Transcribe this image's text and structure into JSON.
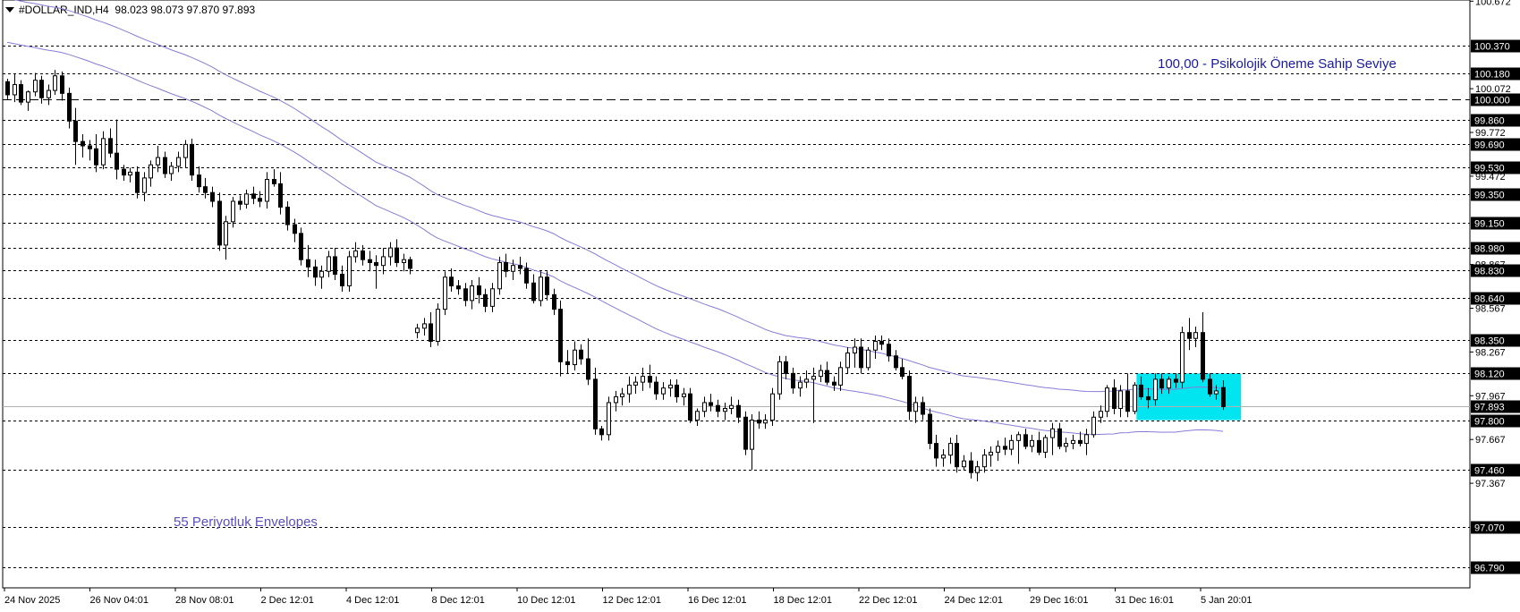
{
  "header": {
    "symbol": "#DOLLAR_IND,H4",
    "ohlc": "98.023 98.073 97.870 97.893"
  },
  "colors": {
    "background": "#ffffff",
    "candle": "#000000",
    "envelope": "#8a7bd6",
    "annotation_text": "#1a1aa0",
    "envelope_label": "#5a4fc0",
    "zone_fill": "#00e5f0",
    "current_price_line": "#b0b0b0"
  },
  "chart_data": {
    "type": "candlestick",
    "title": "",
    "ylim": [
      96.65,
      100.68
    ],
    "grid": false,
    "y_ticks": [
      "100.672",
      "100.072",
      "99.772",
      "99.472",
      "98.867",
      "98.567",
      "98.267",
      "97.967",
      "97.667",
      "97.367"
    ],
    "x_ticks": [
      "24 Nov 2025",
      "26 Nov 04:01",
      "28 Nov 08:01",
      "2 Dec 12:01",
      "4 Dec 12:01",
      "8 Dec 12:01",
      "10 Dec 12:01",
      "12 Dec 12:01",
      "16 Dec 12:01",
      "18 Dec 12:01",
      "22 Dec 12:01",
      "24 Dec 12:01",
      "29 Dec 16:01",
      "31 Dec 16:01",
      "5 Jan 20:01"
    ],
    "horizontal_levels": [
      {
        "value": 100.37,
        "label": "100.370",
        "style": "dotted"
      },
      {
        "value": 100.18,
        "label": "100.180",
        "style": "dotted"
      },
      {
        "value": 100.0,
        "label": "100.000",
        "style": "dashed"
      },
      {
        "value": 99.86,
        "label": "99.860",
        "style": "dotted"
      },
      {
        "value": 99.69,
        "label": "99.690",
        "style": "dotted"
      },
      {
        "value": 99.53,
        "label": "99.530",
        "style": "dotted"
      },
      {
        "value": 99.35,
        "label": "99.350",
        "style": "dotted"
      },
      {
        "value": 99.15,
        "label": "99.150",
        "style": "dotted"
      },
      {
        "value": 98.98,
        "label": "98.980",
        "style": "dotted"
      },
      {
        "value": 98.83,
        "label": "98.830",
        "style": "dotted"
      },
      {
        "value": 98.64,
        "label": "98.640",
        "style": "dotted"
      },
      {
        "value": 98.35,
        "label": "98.350",
        "style": "dotted"
      },
      {
        "value": 98.12,
        "label": "98.120",
        "style": "dotted"
      },
      {
        "value": 97.8,
        "label": "97.800",
        "style": "dotted"
      },
      {
        "value": 97.46,
        "label": "97.460",
        "style": "dotted"
      },
      {
        "value": 97.07,
        "label": "97.070",
        "style": "dotted"
      },
      {
        "value": 96.79,
        "label": "96.790",
        "style": "dotted"
      }
    ],
    "current_price": {
      "value": 97.893,
      "label": "97.893"
    },
    "annotations": [
      {
        "text": "100,00 -  Psikolojik Öneme Sahip Seviye"
      },
      {
        "text": "55 Periyotluk Envelopes"
      }
    ],
    "zone": {
      "y_low": 97.8,
      "y_high": 98.12
    },
    "candles": [
      [
        100.12,
        100.14,
        100.0,
        100.03
      ],
      [
        100.03,
        100.17,
        99.98,
        100.1
      ],
      [
        100.1,
        100.13,
        99.96,
        99.98
      ],
      [
        99.98,
        100.06,
        99.92,
        100.05
      ],
      [
        100.05,
        100.18,
        100.02,
        100.13
      ],
      [
        100.13,
        100.16,
        99.97,
        100.01
      ],
      [
        100.01,
        100.1,
        99.96,
        100.06
      ],
      [
        100.06,
        100.2,
        100.03,
        100.16
      ],
      [
        100.16,
        100.19,
        99.99,
        100.04
      ],
      [
        100.04,
        100.08,
        99.8,
        99.85
      ],
      [
        99.85,
        99.94,
        99.55,
        99.71
      ],
      [
        99.71,
        99.76,
        99.6,
        99.68
      ],
      [
        99.68,
        99.72,
        99.58,
        99.66
      ],
      [
        99.66,
        99.76,
        99.5,
        99.55
      ],
      [
        99.55,
        99.78,
        99.52,
        99.73
      ],
      [
        99.73,
        99.8,
        99.6,
        99.63
      ],
      [
        99.63,
        99.86,
        99.45,
        99.52
      ],
      [
        99.52,
        99.55,
        99.44,
        99.48
      ],
      [
        99.48,
        99.53,
        99.43,
        99.5
      ],
      [
        99.5,
        99.54,
        99.32,
        99.36
      ],
      [
        99.36,
        99.5,
        99.3,
        99.46
      ],
      [
        99.46,
        99.58,
        99.4,
        99.55
      ],
      [
        99.55,
        99.68,
        99.5,
        99.6
      ],
      [
        99.6,
        99.64,
        99.46,
        99.49
      ],
      [
        99.49,
        99.57,
        99.44,
        99.54
      ],
      [
        99.54,
        99.64,
        99.5,
        99.6
      ],
      [
        99.6,
        99.72,
        99.53,
        99.69
      ],
      [
        99.69,
        99.73,
        99.44,
        99.48
      ],
      [
        99.48,
        99.54,
        99.36,
        99.4
      ],
      [
        99.4,
        99.46,
        99.32,
        99.36
      ],
      [
        99.36,
        99.4,
        99.26,
        99.3
      ],
      [
        99.3,
        99.36,
        98.96,
        99.0
      ],
      [
        99.0,
        99.2,
        98.9,
        99.16
      ],
      [
        99.16,
        99.33,
        99.12,
        99.3
      ],
      [
        99.3,
        99.34,
        99.24,
        99.28
      ],
      [
        99.28,
        99.38,
        99.25,
        99.35
      ],
      [
        99.35,
        99.4,
        99.28,
        99.32
      ],
      [
        99.32,
        99.37,
        99.26,
        99.3
      ],
      [
        99.3,
        99.5,
        99.25,
        99.45
      ],
      [
        99.45,
        99.52,
        99.4,
        99.42
      ],
      [
        99.42,
        99.5,
        99.21,
        99.26
      ],
      [
        99.26,
        99.3,
        99.1,
        99.14
      ],
      [
        99.14,
        99.18,
        99.02,
        99.08
      ],
      [
        99.08,
        99.12,
        98.86,
        98.9
      ],
      [
        98.9,
        99.0,
        98.78,
        98.85
      ],
      [
        98.85,
        98.9,
        98.72,
        98.78
      ],
      [
        98.78,
        98.86,
        98.7,
        98.82
      ],
      [
        98.82,
        98.96,
        98.78,
        98.92
      ],
      [
        98.92,
        98.98,
        98.76,
        98.8
      ],
      [
        98.8,
        98.86,
        98.68,
        98.72
      ],
      [
        98.72,
        98.96,
        98.68,
        98.92
      ],
      [
        98.92,
        99.02,
        98.88,
        98.96
      ],
      [
        98.96,
        99.0,
        98.86,
        98.9
      ],
      [
        98.9,
        98.96,
        98.82,
        98.88
      ],
      [
        98.88,
        98.93,
        98.7,
        98.86
      ],
      [
        98.86,
        98.98,
        98.8,
        98.92
      ],
      [
        98.92,
        99.02,
        98.86,
        98.98
      ],
      [
        98.98,
        99.04,
        98.85,
        98.88
      ],
      [
        98.88,
        98.94,
        98.82,
        98.9
      ],
      [
        98.9,
        98.92,
        98.8,
        98.84
      ],
      [
        98.4,
        98.46,
        98.36,
        98.43
      ],
      [
        98.43,
        98.5,
        98.38,
        98.46
      ],
      [
        98.46,
        98.54,
        98.3,
        98.34
      ],
      [
        98.34,
        98.6,
        98.31,
        98.56
      ],
      [
        98.56,
        98.82,
        98.52,
        98.78
      ],
      [
        98.78,
        98.84,
        98.68,
        98.72
      ],
      [
        98.72,
        98.76,
        98.66,
        98.7
      ],
      [
        98.7,
        98.74,
        98.58,
        98.62
      ],
      [
        98.62,
        98.76,
        98.56,
        98.72
      ],
      [
        98.72,
        98.78,
        98.6,
        98.66
      ],
      [
        98.66,
        98.7,
        98.54,
        98.58
      ],
      [
        98.58,
        98.74,
        98.54,
        98.7
      ],
      [
        98.7,
        98.92,
        98.66,
        98.88
      ],
      [
        98.88,
        98.94,
        98.78,
        98.82
      ],
      [
        98.82,
        98.9,
        98.76,
        98.86
      ],
      [
        98.86,
        98.92,
        98.8,
        98.84
      ],
      [
        98.84,
        98.88,
        98.7,
        98.74
      ],
      [
        98.74,
        98.8,
        98.6,
        98.62
      ],
      [
        98.62,
        98.82,
        98.58,
        98.78
      ],
      [
        98.78,
        98.82,
        98.62,
        98.66
      ],
      [
        98.66,
        98.7,
        98.52,
        98.56
      ],
      [
        98.56,
        98.62,
        98.1,
        98.2
      ],
      [
        98.2,
        98.28,
        98.12,
        98.18
      ],
      [
        98.18,
        98.34,
        98.14,
        98.28
      ],
      [
        98.28,
        98.32,
        98.18,
        98.22
      ],
      [
        98.22,
        98.36,
        98.04,
        98.08
      ],
      [
        98.08,
        98.16,
        97.7,
        97.74
      ],
      [
        97.74,
        97.76,
        97.66,
        97.7
      ],
      [
        97.7,
        97.96,
        97.66,
        97.92
      ],
      [
        97.92,
        98.0,
        97.86,
        97.96
      ],
      [
        97.96,
        98.02,
        97.9,
        97.98
      ],
      [
        97.98,
        98.1,
        97.92,
        98.04
      ],
      [
        98.04,
        98.1,
        97.98,
        98.06
      ],
      [
        98.06,
        98.16,
        98.0,
        98.1
      ],
      [
        98.1,
        98.18,
        98.02,
        98.06
      ],
      [
        98.06,
        98.1,
        97.94,
        97.98
      ],
      [
        97.98,
        98.06,
        97.94,
        98.02
      ],
      [
        98.02,
        98.08,
        97.96,
        98.04
      ],
      [
        98.04,
        98.08,
        97.92,
        97.96
      ],
      [
        97.96,
        98.02,
        97.9,
        97.98
      ],
      [
        97.98,
        98.02,
        97.78,
        97.8
      ],
      [
        97.8,
        97.88,
        97.76,
        97.86
      ],
      [
        97.86,
        97.96,
        97.82,
        97.92
      ],
      [
        97.92,
        97.98,
        97.86,
        97.9
      ],
      [
        97.9,
        97.94,
        97.82,
        97.86
      ],
      [
        97.86,
        97.92,
        97.8,
        97.88
      ],
      [
        97.88,
        97.96,
        97.84,
        97.9
      ],
      [
        97.9,
        97.94,
        97.78,
        97.82
      ],
      [
        97.82,
        97.86,
        97.56,
        97.6
      ],
      [
        97.6,
        97.84,
        97.46,
        97.8
      ],
      [
        97.8,
        97.86,
        97.74,
        97.78
      ],
      [
        97.78,
        97.84,
        97.74,
        97.8
      ],
      [
        97.8,
        98.02,
        97.76,
        97.98
      ],
      [
        97.98,
        98.24,
        97.94,
        98.2
      ],
      [
        98.2,
        98.24,
        98.08,
        98.12
      ],
      [
        98.12,
        98.16,
        97.98,
        98.02
      ],
      [
        98.02,
        98.1,
        97.96,
        98.06
      ],
      [
        98.06,
        98.14,
        98.02,
        98.08
      ],
      [
        98.08,
        98.16,
        97.78,
        98.1
      ],
      [
        98.1,
        98.18,
        98.06,
        98.14
      ],
      [
        98.14,
        98.2,
        98.04,
        98.06
      ],
      [
        98.06,
        98.1,
        98.0,
        98.04
      ],
      [
        98.04,
        98.2,
        98.0,
        98.16
      ],
      [
        98.16,
        98.3,
        98.12,
        98.26
      ],
      [
        98.26,
        98.36,
        98.16,
        98.3
      ],
      [
        98.3,
        98.36,
        98.12,
        98.16
      ],
      [
        98.16,
        98.3,
        98.14,
        98.28
      ],
      [
        98.28,
        98.38,
        98.22,
        98.34
      ],
      [
        98.34,
        98.38,
        98.28,
        98.32
      ],
      [
        98.32,
        98.36,
        98.2,
        98.24
      ],
      [
        98.24,
        98.28,
        98.14,
        98.16
      ],
      [
        98.16,
        98.22,
        98.08,
        98.1
      ],
      [
        98.1,
        98.14,
        97.8,
        97.86
      ],
      [
        97.86,
        97.96,
        97.78,
        97.92
      ],
      [
        97.92,
        97.96,
        97.8,
        97.84
      ],
      [
        97.84,
        97.88,
        97.6,
        97.64
      ],
      [
        97.64,
        97.7,
        97.48,
        97.54
      ],
      [
        97.54,
        97.6,
        97.48,
        97.56
      ],
      [
        97.56,
        97.68,
        97.5,
        97.64
      ],
      [
        97.64,
        97.7,
        97.44,
        97.48
      ],
      [
        97.48,
        97.56,
        97.46,
        97.52
      ],
      [
        97.52,
        97.58,
        97.4,
        97.44
      ],
      [
        97.44,
        97.52,
        97.38,
        97.48
      ],
      [
        97.48,
        97.6,
        97.44,
        97.56
      ],
      [
        97.56,
        97.62,
        97.48,
        97.58
      ],
      [
        97.58,
        97.66,
        97.52,
        97.62
      ],
      [
        97.62,
        97.68,
        97.56,
        97.6
      ],
      [
        97.6,
        97.7,
        97.56,
        97.66
      ],
      [
        97.66,
        97.72,
        97.5,
        97.7
      ],
      [
        97.7,
        97.74,
        97.6,
        97.62
      ],
      [
        97.62,
        97.7,
        97.58,
        97.66
      ],
      [
        97.66,
        97.72,
        97.56,
        97.58
      ],
      [
        97.58,
        97.7,
        97.54,
        97.68
      ],
      [
        97.68,
        97.78,
        97.56,
        97.74
      ],
      [
        97.74,
        97.78,
        97.6,
        97.62
      ],
      [
        97.62,
        97.68,
        97.58,
        97.64
      ],
      [
        97.64,
        97.7,
        97.6,
        97.66
      ],
      [
        97.66,
        97.72,
        97.62,
        97.64
      ],
      [
        97.64,
        97.74,
        97.56,
        97.7
      ],
      [
        97.7,
        97.86,
        97.68,
        97.82
      ],
      [
        97.82,
        97.9,
        97.78,
        97.86
      ],
      [
        97.86,
        98.04,
        97.82,
        98.02
      ],
      [
        98.02,
        98.08,
        97.84,
        97.88
      ],
      [
        97.88,
        98.04,
        97.82,
        98.0
      ],
      [
        98.0,
        98.12,
        97.82,
        97.86
      ],
      [
        97.86,
        98.06,
        97.84,
        98.04
      ],
      [
        98.04,
        98.1,
        97.94,
        97.96
      ],
      [
        97.96,
        98.02,
        97.88,
        97.94
      ],
      [
        97.94,
        98.12,
        97.9,
        98.08
      ],
      [
        98.08,
        98.12,
        97.98,
        98.02
      ],
      [
        98.02,
        98.1,
        97.98,
        98.08
      ],
      [
        98.08,
        98.12,
        98.02,
        98.06
      ],
      [
        98.06,
        98.44,
        98.02,
        98.4
      ],
      [
        98.4,
        98.5,
        98.28,
        98.36
      ],
      [
        98.36,
        98.44,
        98.3,
        98.4
      ],
      [
        98.4,
        98.54,
        98.06,
        98.08
      ],
      [
        98.08,
        98.12,
        97.96,
        97.98
      ],
      [
        97.98,
        98.04,
        97.94,
        98.0
      ],
      [
        98.023,
        98.073,
        97.87,
        97.893
      ]
    ]
  }
}
